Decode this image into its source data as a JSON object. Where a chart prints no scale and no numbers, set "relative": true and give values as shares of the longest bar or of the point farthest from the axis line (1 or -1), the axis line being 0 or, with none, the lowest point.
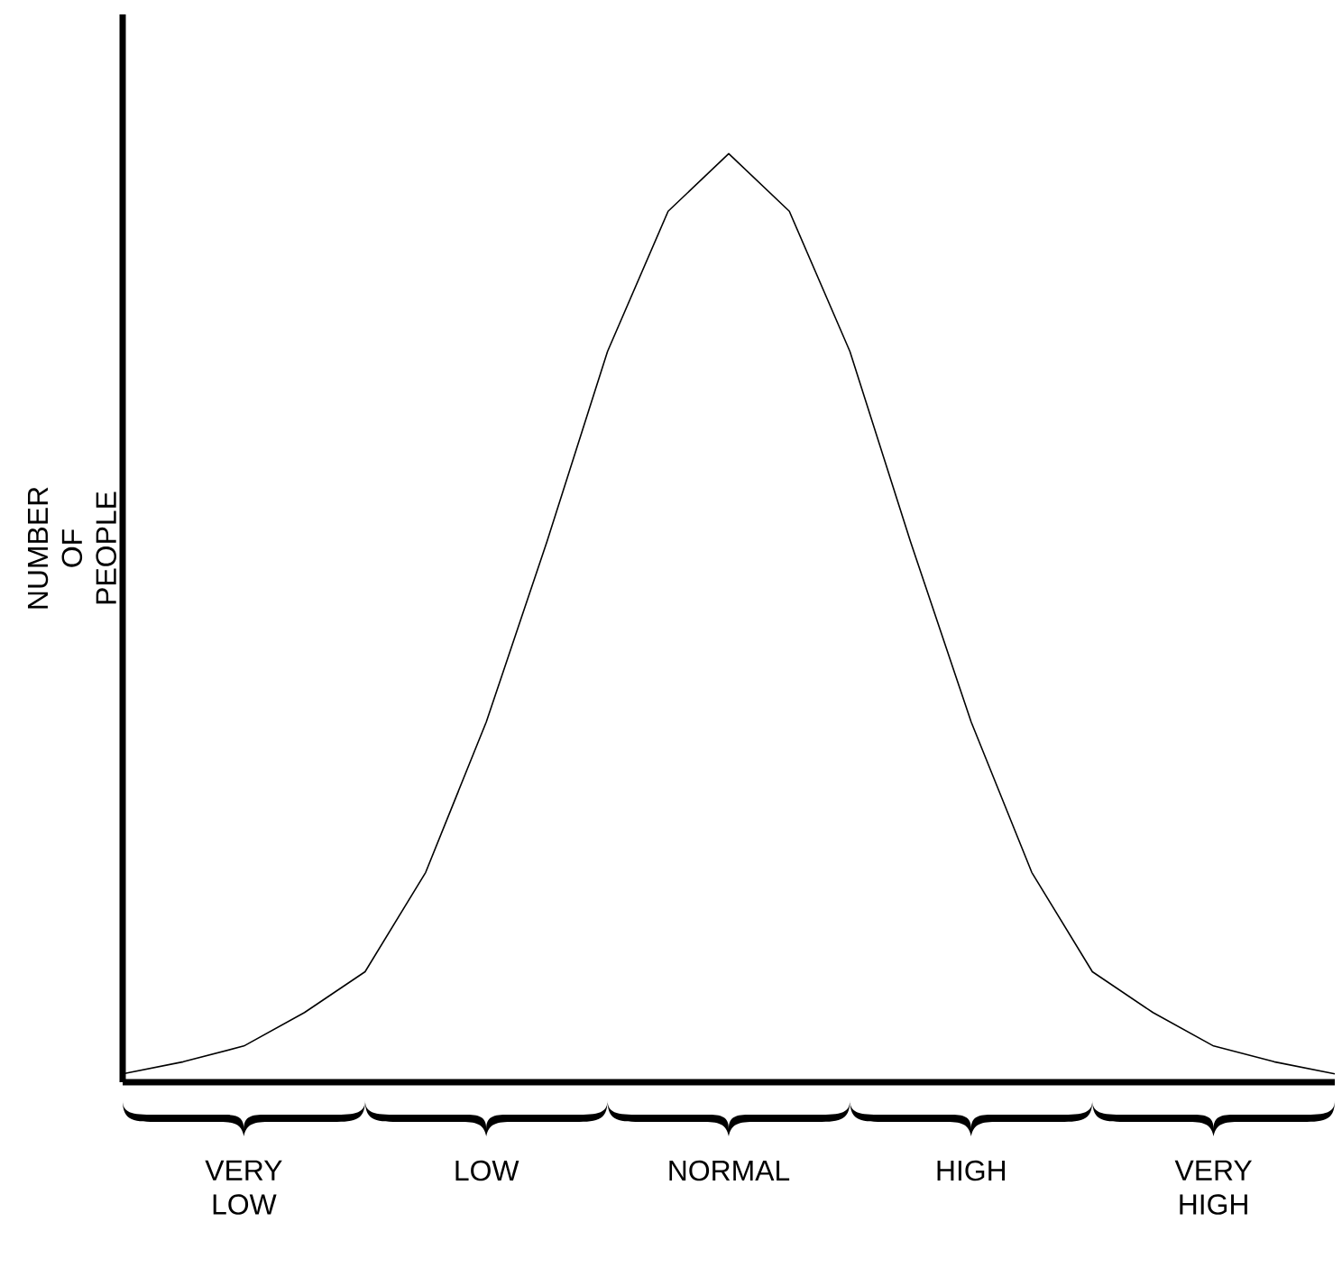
{
  "chart_data": {
    "type": "line",
    "relative": true,
    "ylabel": "NUMBER OF PEOPLE",
    "categories": [
      null,
      null,
      "VERY LOW",
      null,
      null,
      null,
      "LOW",
      null,
      null,
      null,
      "NORMAL",
      null,
      null,
      null,
      "HIGH",
      null,
      null,
      null,
      "VERY HIGH",
      null,
      null
    ],
    "series": [
      {
        "color": "#000000",
        "values": [
          0.009,
          0.022,
          0.039,
          0.075,
          0.119,
          0.226,
          0.388,
          0.582,
          0.787,
          0.938,
          1.0,
          0.938,
          0.787,
          0.582,
          0.388,
          0.226,
          0.119,
          0.075,
          0.039,
          0.022,
          0.009
        ]
      }
    ]
  }
}
